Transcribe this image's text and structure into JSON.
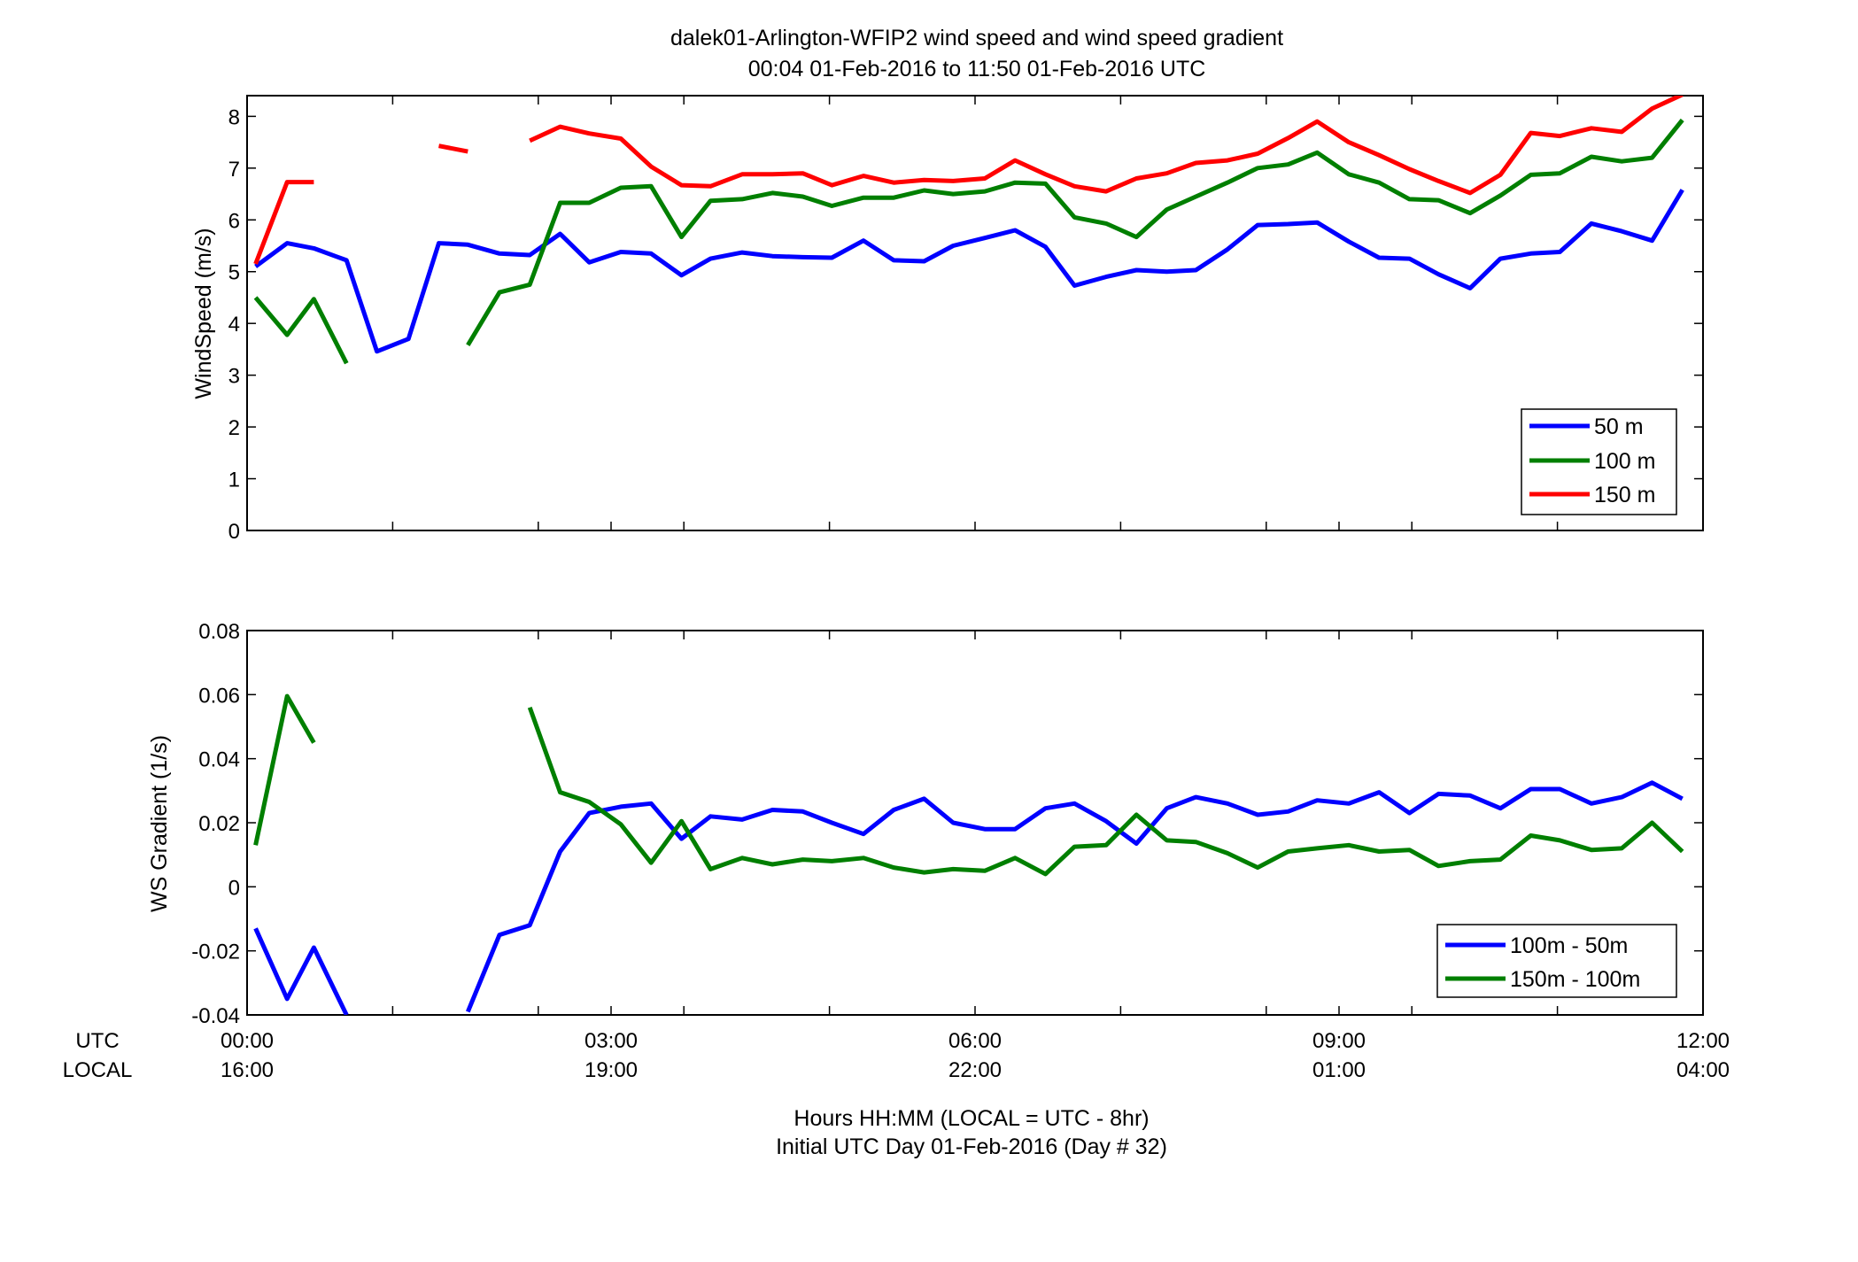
{
  "title_line1": "dalek01-Arlington-WFIP2  wind speed and wind speed gradient",
  "title_line2": "00:04 01-Feb-2016 to 11:50 01-Feb-2016  UTC",
  "row_labels": {
    "utc": "UTC",
    "local": "LOCAL"
  },
  "footer_line1": "Hours HH:MM  (LOCAL = UTC - 8hr)",
  "footer_line2": "Initial UTC Day 01-Feb-2016 (Day # 32)",
  "chart_data": [
    {
      "type": "line",
      "ylabel": "WindSpeed (m/s)",
      "xlim": [
        0,
        12
      ],
      "ylim": [
        0,
        8.4
      ],
      "yticks": [
        0,
        1,
        2,
        3,
        4,
        5,
        6,
        7,
        8
      ],
      "ytick_labels": [
        "0",
        "1",
        "2",
        "3",
        "4",
        "5",
        "6",
        "7",
        "8"
      ],
      "xticks": [
        0,
        1.2,
        2.4,
        3.0,
        3.6,
        4.8,
        6.0,
        7.2,
        8.4,
        9.0,
        9.6,
        10.8,
        12.0
      ],
      "grid": false,
      "legend_position": "bottom-right",
      "x": [
        0.07,
        0.33,
        0.55,
        0.82,
        1.07,
        1.33,
        1.58,
        1.82,
        2.08,
        2.33,
        2.58,
        2.82,
        3.08,
        3.33,
        3.58,
        3.82,
        4.08,
        4.33,
        4.58,
        4.82,
        5.08,
        5.33,
        5.58,
        5.82,
        6.08,
        6.33,
        6.58,
        6.82,
        7.08,
        7.33,
        7.58,
        7.82,
        8.08,
        8.33,
        8.58,
        8.82,
        9.08,
        9.33,
        9.58,
        9.82,
        10.08,
        10.33,
        10.58,
        10.82,
        11.08,
        11.33,
        11.58,
        11.83
      ],
      "series": [
        {
          "name": "50 m",
          "color": "#0000ff",
          "values": [
            5.1,
            5.55,
            5.45,
            5.22,
            3.46,
            3.7,
            5.55,
            5.52,
            5.35,
            5.32,
            5.73,
            5.18,
            5.38,
            5.35,
            4.93,
            5.25,
            5.37,
            5.3,
            5.28,
            5.27,
            5.6,
            5.22,
            5.2,
            5.5,
            5.65,
            5.8,
            5.48,
            4.73,
            4.9,
            5.03,
            5.0,
            5.03,
            5.43,
            5.9,
            5.92,
            5.95,
            5.58,
            5.27,
            5.25,
            4.95,
            4.68,
            5.25,
            5.35,
            5.38,
            5.93,
            5.78,
            5.6,
            6.58
          ]
        },
        {
          "name": "100 m",
          "color": "#007f00",
          "values": [
            4.5,
            3.78,
            4.47,
            3.23,
            null,
            null,
            null,
            3.58,
            4.6,
            4.75,
            6.33,
            6.33,
            6.62,
            6.65,
            5.67,
            6.37,
            6.4,
            6.52,
            6.45,
            6.27,
            6.43,
            6.43,
            6.57,
            6.5,
            6.55,
            6.72,
            6.7,
            6.05,
            5.93,
            5.67,
            6.2,
            6.45,
            6.72,
            7.0,
            7.07,
            7.3,
            6.88,
            6.72,
            6.4,
            6.38,
            6.13,
            6.47,
            6.87,
            6.9,
            7.22,
            7.13,
            7.2,
            7.93
          ]
        },
        {
          "name": "150 m",
          "color": "#ff0000",
          "values": [
            5.15,
            6.73,
            6.73,
            null,
            null,
            null,
            7.43,
            7.32,
            null,
            7.53,
            7.8,
            7.67,
            7.57,
            7.03,
            6.67,
            6.65,
            6.88,
            6.88,
            6.9,
            6.67,
            6.85,
            6.72,
            6.77,
            6.75,
            6.8,
            7.15,
            6.88,
            6.65,
            6.55,
            6.8,
            6.9,
            7.1,
            7.15,
            7.28,
            7.58,
            7.9,
            7.5,
            7.25,
            6.98,
            6.75,
            6.52,
            6.87,
            7.68,
            7.62,
            7.77,
            7.7,
            8.15,
            8.42
          ]
        }
      ]
    },
    {
      "type": "line",
      "ylabel": "WS Gradient (1/s)",
      "xlim": [
        0,
        12
      ],
      "ylim": [
        -0.04,
        0.08
      ],
      "yticks": [
        -0.04,
        -0.02,
        0,
        0.02,
        0.04,
        0.06,
        0.08
      ],
      "ytick_labels": [
        "-0.04",
        "-0.02",
        "0",
        "0.02",
        "0.04",
        "0.06",
        "0.08"
      ],
      "xticks": [
        0,
        1.2,
        2.4,
        3.0,
        3.6,
        4.8,
        6.0,
        7.2,
        8.4,
        9.0,
        9.6,
        10.8,
        12.0
      ],
      "xtick_labels_utc": [
        "00:00",
        "03:00",
        "06:00",
        "09:00",
        "12:00"
      ],
      "xtick_labels_local": [
        "16:00",
        "19:00",
        "22:00",
        "01:00",
        "04:00"
      ],
      "xtick_label_positions": [
        0,
        3,
        6,
        9,
        12
      ],
      "grid": false,
      "legend_position": "bottom-right",
      "x": [
        0.07,
        0.33,
        0.55,
        0.82,
        1.07,
        1.33,
        1.58,
        1.82,
        2.08,
        2.33,
        2.58,
        2.82,
        3.08,
        3.33,
        3.58,
        3.82,
        4.08,
        4.33,
        4.58,
        4.82,
        5.08,
        5.33,
        5.58,
        5.82,
        6.08,
        6.33,
        6.58,
        6.82,
        7.08,
        7.33,
        7.58,
        7.82,
        8.08,
        8.33,
        8.58,
        8.82,
        9.08,
        9.33,
        9.58,
        9.82,
        10.08,
        10.33,
        10.58,
        10.82,
        11.08,
        11.33,
        11.58,
        11.83
      ],
      "series": [
        {
          "name": "100m - 50m",
          "color": "#0000ff",
          "values": [
            -0.013,
            -0.035,
            -0.019,
            -0.04,
            null,
            null,
            null,
            -0.039,
            -0.015,
            -0.012,
            0.011,
            0.023,
            0.025,
            0.026,
            0.015,
            0.022,
            0.021,
            0.024,
            0.0235,
            0.02,
            0.0165,
            0.024,
            0.0275,
            0.02,
            0.018,
            0.018,
            0.0245,
            0.026,
            0.0205,
            0.0135,
            0.0245,
            0.028,
            0.026,
            0.0225,
            0.0235,
            0.027,
            0.026,
            0.0295,
            0.023,
            0.029,
            0.0285,
            0.0245,
            0.0305,
            0.0305,
            0.026,
            0.028,
            0.0325,
            0.0275
          ]
        },
        {
          "name": "150m - 100m",
          "color": "#007f00",
          "values": [
            0.013,
            0.0595,
            0.045,
            null,
            null,
            null,
            null,
            null,
            null,
            0.056,
            0.0295,
            0.0265,
            0.0195,
            0.0075,
            0.0205,
            0.0055,
            0.009,
            0.007,
            0.0085,
            0.008,
            0.009,
            0.006,
            0.0045,
            0.0055,
            0.005,
            0.009,
            0.004,
            0.0125,
            0.013,
            0.0225,
            0.0145,
            0.014,
            0.0105,
            0.006,
            0.011,
            0.012,
            0.013,
            0.011,
            0.0115,
            0.0065,
            0.008,
            0.0085,
            0.016,
            0.0145,
            0.0115,
            0.012,
            0.02,
            0.011
          ]
        }
      ]
    }
  ]
}
